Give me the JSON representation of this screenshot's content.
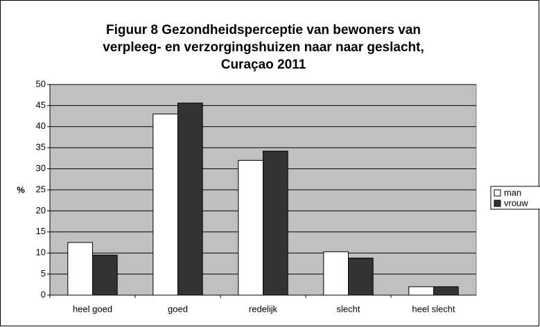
{
  "chart_data": {
    "type": "bar",
    "title": [
      "Figuur 8 Gezondheidsperceptie van bewoners van",
      "verpleeg- en verzorgingshuizen naar naar geslacht,",
      "Curaçao 2011"
    ],
    "y_label": "%",
    "categories": [
      "heel goed",
      "goed",
      "redelijk",
      "slecht",
      "heel slecht"
    ],
    "series": [
      {
        "name": "man",
        "color": "#ffffff",
        "values": [
          12.5,
          43,
          32,
          10.3,
          2
        ]
      },
      {
        "name": "vrouw",
        "color": "#333333",
        "values": [
          9.5,
          45.6,
          34.2,
          8.8,
          2
        ]
      }
    ],
    "ylim": [
      0,
      50
    ],
    "yticks": [
      0,
      5,
      10,
      15,
      20,
      25,
      30,
      35,
      40,
      45,
      50
    ],
    "grid": true,
    "plot_background": "#c0c0c0",
    "legend": "right"
  }
}
